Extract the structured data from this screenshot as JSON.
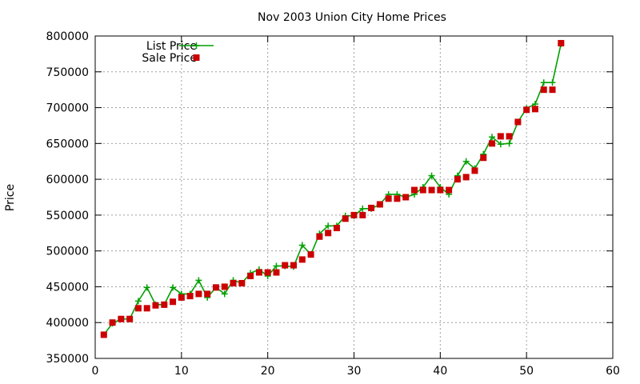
{
  "chart_data": {
    "type": "line",
    "title": "Nov 2003 Union City Home Prices",
    "xlabel": "",
    "ylabel": "Price",
    "xlim": [
      0,
      60
    ],
    "ylim": [
      350000,
      800000
    ],
    "xticks": [
      0,
      10,
      20,
      30,
      40,
      50,
      60
    ],
    "yticks": [
      350000,
      400000,
      450000,
      500000,
      550000,
      600000,
      650000,
      700000,
      750000,
      800000
    ],
    "grid": true,
    "legend_position": "top-left",
    "series": [
      {
        "name": "List Price",
        "style": "line-with-plus",
        "color": "#00a000",
        "x": [
          1,
          2,
          3,
          4,
          5,
          6,
          7,
          8,
          9,
          10,
          11,
          12,
          13,
          14,
          15,
          16,
          17,
          18,
          19,
          20,
          21,
          22,
          23,
          24,
          25,
          26,
          27,
          28,
          29,
          30,
          31,
          32,
          33,
          34,
          35,
          36,
          37,
          38,
          39,
          40,
          41,
          42,
          43,
          44,
          45,
          46,
          47,
          48,
          49,
          50,
          51,
          52,
          53,
          54
        ],
        "y": [
          383000,
          399000,
          405000,
          405000,
          430000,
          449000,
          425000,
          425000,
          449000,
          440000,
          440000,
          459000,
          435000,
          449000,
          440000,
          459000,
          455000,
          469000,
          474000,
          465000,
          479000,
          479000,
          478000,
          508000,
          495000,
          524000,
          535000,
          535000,
          549000,
          549000,
          559000,
          559000,
          565000,
          579000,
          579000,
          575000,
          579000,
          589000,
          605000,
          589000,
          579000,
          605000,
          625000,
          615000,
          635000,
          659000,
          649000,
          650000,
          680000,
          699000,
          705000,
          735000,
          735000,
          789000
        ]
      },
      {
        "name": "Sale Price",
        "style": "points-square",
        "color": "#cc0000",
        "x": [
          1,
          2,
          3,
          4,
          5,
          6,
          7,
          8,
          9,
          10,
          11,
          12,
          13,
          14,
          15,
          16,
          17,
          18,
          19,
          20,
          21,
          22,
          23,
          24,
          25,
          26,
          27,
          28,
          29,
          30,
          31,
          32,
          33,
          34,
          35,
          36,
          37,
          38,
          39,
          40,
          41,
          42,
          43,
          44,
          45,
          46,
          47,
          48,
          49,
          50,
          51,
          52,
          53,
          54
        ],
        "y": [
          383000,
          400000,
          405000,
          405000,
          420000,
          420000,
          424000,
          425000,
          429000,
          435000,
          437000,
          440000,
          440000,
          449000,
          450000,
          455000,
          455000,
          465000,
          470000,
          470000,
          470000,
          480000,
          480000,
          488000,
          495000,
          520000,
          525000,
          532000,
          545000,
          550000,
          550000,
          560000,
          565000,
          573000,
          573000,
          575000,
          585000,
          585000,
          585000,
          585000,
          585000,
          600000,
          603000,
          612000,
          630000,
          650000,
          660000,
          660000,
          680000,
          697000,
          698000,
          725000,
          725000,
          790000
        ]
      }
    ]
  }
}
